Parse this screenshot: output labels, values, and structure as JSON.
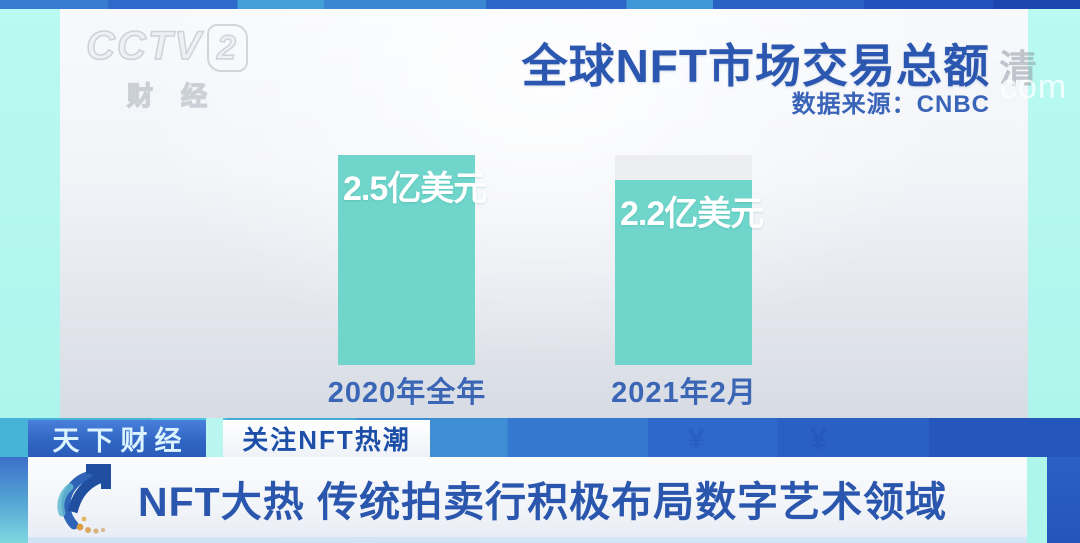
{
  "watermark": {
    "channel": "CCTV",
    "channel_number": "2",
    "channel_sub": "财经",
    "quality_badge": "清",
    "site_mark": "com"
  },
  "header": {
    "title": "全球NFT市场交易总额",
    "source": "数据来源：CNBC"
  },
  "chart_data": {
    "type": "bar",
    "title": "全球NFT市场交易总额",
    "source": "数据来源：CNBC",
    "categories": [
      "2020年全年",
      "2021年2月"
    ],
    "values": [
      2.5,
      2.2
    ],
    "unit": "亿美元",
    "bar_labels": [
      "2.5亿美元",
      "2.2亿美元"
    ],
    "ylim": [
      0,
      2.5
    ],
    "bar_color": "#70d6cc",
    "ghost_cap_color": "#eceef2",
    "legend": "none",
    "grid": "off"
  },
  "ticker": {
    "program_badge": "天下财经",
    "topic_badge": "关注NFT热潮",
    "headline": "NFT大热 传统拍卖行积极布局数字艺术领域",
    "band_symbols": [
      "¥",
      "¥"
    ]
  },
  "colors": {
    "title_blue": "#2b57b0",
    "bar_teal": "#70d6cc",
    "side_cyan": "#aef5ec",
    "badge_blue": "#3166c4",
    "headline_blue": "#2a56ad"
  }
}
